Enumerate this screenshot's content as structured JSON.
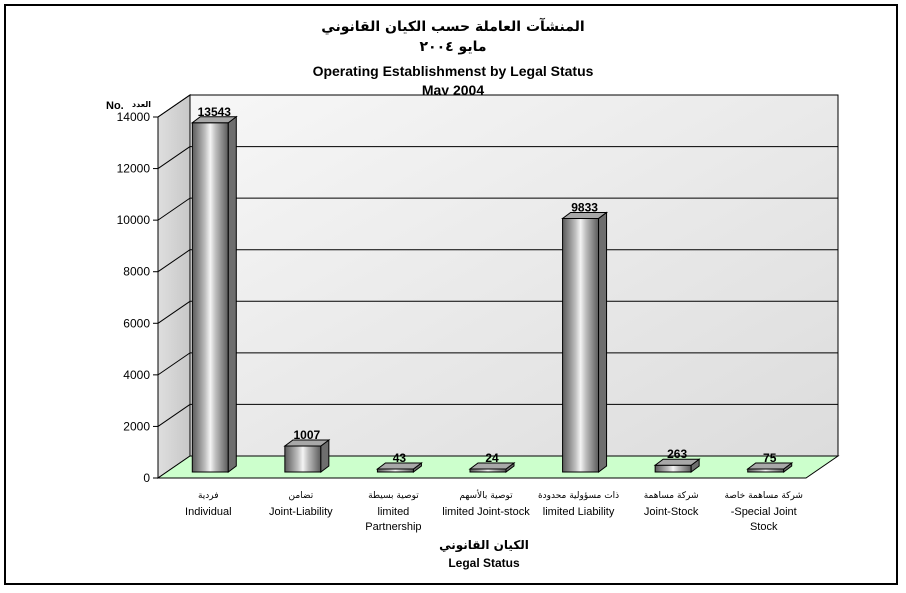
{
  "chart_data": {
    "type": "bar",
    "title_ar": "المنشآت العاملة حسب الكيان القانوني",
    "subtitle_ar": "مايو ٢٠٠٤",
    "title": "Operating Establishmenst by Legal Status",
    "subtitle": "May 2004",
    "ylabel": "No.",
    "ylabel_ar": "العدد",
    "xlabel_ar": "الكيان القانوني",
    "xlabel": "Legal Status",
    "ylim": [
      0,
      14000
    ],
    "yticks": [
      0,
      2000,
      4000,
      6000,
      8000,
      10000,
      12000,
      14000
    ],
    "categories_ar": [
      "فردية",
      "تضامن",
      "توصية بسيطة",
      "توصية بالأسهم",
      "ذات مسؤولية محدودة",
      "شركة مساهمة",
      "شركة مساهمة خاصة"
    ],
    "categories": [
      "Individual",
      "Joint-Liability",
      "limited Partnership",
      "limited Joint-stock",
      "limited Liability",
      "Joint-Stock",
      "-Special Joint Stock"
    ],
    "categories_lines": [
      [
        "Individual"
      ],
      [
        "Joint-Liability"
      ],
      [
        "limited",
        "Partnership"
      ],
      [
        "limited Joint-stock"
      ],
      [
        "limited Liability"
      ],
      [
        "Joint-Stock"
      ],
      [
        "-Special Joint",
        "Stock"
      ]
    ],
    "values": [
      13543,
      1007,
      43,
      24,
      9833,
      263,
      75
    ],
    "grid": true,
    "colors": {
      "floor": "#ccffcc",
      "wall": "#e8e8e8",
      "bar": "#8c8c8c"
    }
  }
}
